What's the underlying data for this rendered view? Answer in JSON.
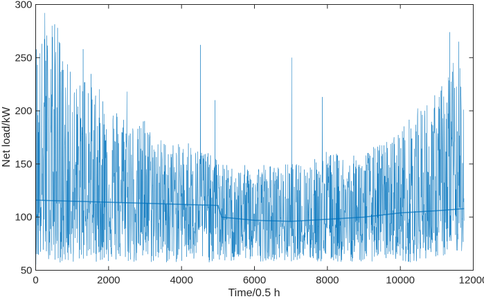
{
  "chart_data": {
    "type": "line",
    "title": "",
    "xlabel": "Time/0.5 h",
    "ylabel": "Net load/kW",
    "xlim": [
      0,
      12000
    ],
    "ylim": [
      50,
      300
    ],
    "x_ticks": [
      0,
      2000,
      4000,
      6000,
      8000,
      10000,
      12000
    ],
    "y_ticks": [
      50,
      100,
      150,
      200,
      250,
      300
    ],
    "x_tick_labels": [
      "0",
      "2000",
      "4000",
      "6000",
      "8000",
      "10000",
      "12000"
    ],
    "y_tick_labels": [
      "50",
      "100",
      "150",
      "200",
      "250",
      "300"
    ],
    "grid": false,
    "legend": "none",
    "series": [
      {
        "color": "#0072BD",
        "sample_interval": 200,
        "x_start": 0,
        "x_end": 11750,
        "baseline": [
          [
            0,
            116
          ],
          [
            1000,
            115
          ],
          [
            2000,
            114
          ],
          [
            3000,
            113
          ],
          [
            4000,
            112
          ],
          [
            5000,
            111
          ],
          [
            5100,
            100
          ],
          [
            6000,
            97
          ],
          [
            7000,
            96
          ],
          [
            8000,
            98
          ],
          [
            9000,
            100
          ],
          [
            10000,
            104
          ],
          [
            11000,
            106
          ],
          [
            11750,
            108
          ]
        ],
        "upper_envelope": [
          [
            0,
            275
          ],
          [
            200,
            270
          ],
          [
            400,
            290
          ],
          [
            600,
            280
          ],
          [
            800,
            250
          ],
          [
            1000,
            235
          ],
          [
            1200,
            225
          ],
          [
            1400,
            255
          ],
          [
            1600,
            225
          ],
          [
            1800,
            220
          ],
          [
            2000,
            215
          ],
          [
            2200,
            205
          ],
          [
            2400,
            200
          ],
          [
            2600,
            195
          ],
          [
            2800,
            185
          ],
          [
            3000,
            195
          ],
          [
            3200,
            180
          ],
          [
            3400,
            175
          ],
          [
            3600,
            172
          ],
          [
            3800,
            170
          ],
          [
            4000,
            168
          ],
          [
            4200,
            175
          ],
          [
            4400,
            165
          ],
          [
            4600,
            168
          ],
          [
            4800,
            158
          ],
          [
            5000,
            155
          ],
          [
            5200,
            150
          ],
          [
            5400,
            148
          ],
          [
            5600,
            147
          ],
          [
            5800,
            150
          ],
          [
            6000,
            150
          ],
          [
            6200,
            153
          ],
          [
            6400,
            150
          ],
          [
            6600,
            148
          ],
          [
            6800,
            150
          ],
          [
            7000,
            152
          ],
          [
            7200,
            150
          ],
          [
            7400,
            152
          ],
          [
            7600,
            155
          ],
          [
            7800,
            158
          ],
          [
            8000,
            165
          ],
          [
            8200,
            160
          ],
          [
            8400,
            160
          ],
          [
            8600,
            155
          ],
          [
            8800,
            160
          ],
          [
            9000,
            162
          ],
          [
            9200,
            165
          ],
          [
            9400,
            170
          ],
          [
            9600,
            172
          ],
          [
            9800,
            178
          ],
          [
            10000,
            185
          ],
          [
            10200,
            192
          ],
          [
            10400,
            200
          ],
          [
            10600,
            208
          ],
          [
            10800,
            212
          ],
          [
            11000,
            218
          ],
          [
            11200,
            230
          ],
          [
            11400,
            255
          ],
          [
            11600,
            245
          ],
          [
            11750,
            225
          ]
        ],
        "lower_envelope": [
          [
            0,
            55
          ],
          [
            200,
            62
          ],
          [
            400,
            60
          ],
          [
            600,
            58
          ],
          [
            800,
            55
          ],
          [
            1000,
            57
          ],
          [
            1200,
            58
          ],
          [
            1400,
            60
          ],
          [
            1600,
            58
          ],
          [
            1800,
            58
          ],
          [
            2000,
            57
          ],
          [
            2200,
            57
          ],
          [
            2400,
            58
          ],
          [
            2600,
            56
          ],
          [
            2800,
            56
          ],
          [
            3000,
            56
          ],
          [
            3200,
            56
          ],
          [
            3400,
            57
          ],
          [
            3600,
            56
          ],
          [
            3800,
            57
          ],
          [
            4000,
            57
          ],
          [
            4200,
            57
          ],
          [
            4400,
            56
          ],
          [
            4600,
            57
          ],
          [
            4800,
            57
          ],
          [
            5000,
            57
          ],
          [
            5200,
            57
          ],
          [
            5400,
            57
          ],
          [
            5600,
            58
          ],
          [
            5800,
            60
          ],
          [
            6000,
            58
          ],
          [
            6200,
            58
          ],
          [
            6400,
            60
          ],
          [
            6600,
            58
          ],
          [
            6800,
            58
          ],
          [
            7000,
            58
          ],
          [
            7200,
            60
          ],
          [
            7400,
            60
          ],
          [
            7600,
            58
          ],
          [
            7800,
            57
          ],
          [
            8000,
            58
          ],
          [
            8200,
            57
          ],
          [
            8400,
            57
          ],
          [
            8600,
            58
          ],
          [
            8800,
            58
          ],
          [
            9000,
            57
          ],
          [
            9200,
            58
          ],
          [
            9400,
            60
          ],
          [
            9600,
            60
          ],
          [
            9800,
            62
          ],
          [
            10000,
            58
          ],
          [
            10200,
            57
          ],
          [
            10400,
            58
          ],
          [
            10600,
            60
          ],
          [
            10800,
            62
          ],
          [
            11000,
            62
          ],
          [
            11200,
            62
          ],
          [
            11400,
            66
          ],
          [
            11600,
            65
          ],
          [
            11750,
            70
          ]
        ],
        "spikes": [
          [
            250,
            292
          ],
          [
            450,
            280
          ],
          [
            600,
            278
          ],
          [
            1300,
            258
          ],
          [
            2500,
            218
          ],
          [
            2950,
            190
          ],
          [
            4520,
            262
          ],
          [
            4920,
            210
          ],
          [
            7020,
            250
          ],
          [
            7860,
            213
          ],
          [
            11350,
            274
          ],
          [
            11600,
            265
          ]
        ]
      }
    ]
  }
}
